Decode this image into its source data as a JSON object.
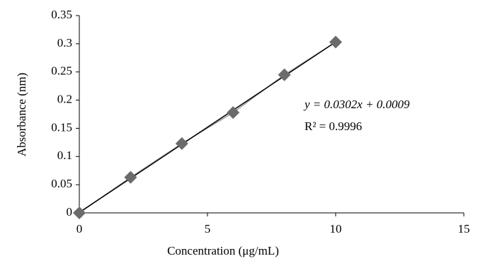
{
  "chart_data": {
    "type": "scatter",
    "x_label": "Concentration (μg/mL)",
    "y_label": "Absorbance (nm)",
    "series": [
      {
        "x": [
          0,
          2,
          4,
          6,
          8,
          10
        ],
        "values": [
          0,
          0.063,
          0.123,
          0.178,
          0.245,
          0.303
        ],
        "color": "#6b6b6b"
      }
    ],
    "trendline_color": "#000000",
    "annotations": [
      "y = 0.0302x + 0.0009",
      "R² = 0.9996"
    ],
    "xlim": [
      0,
      15
    ],
    "xticks": [
      0,
      5,
      10,
      15
    ],
    "ylim": [
      0,
      0.35
    ],
    "yticks": [
      0,
      0.05,
      0.1,
      0.15,
      0.2,
      0.25,
      0.3,
      0.35
    ],
    "grid": false
  }
}
